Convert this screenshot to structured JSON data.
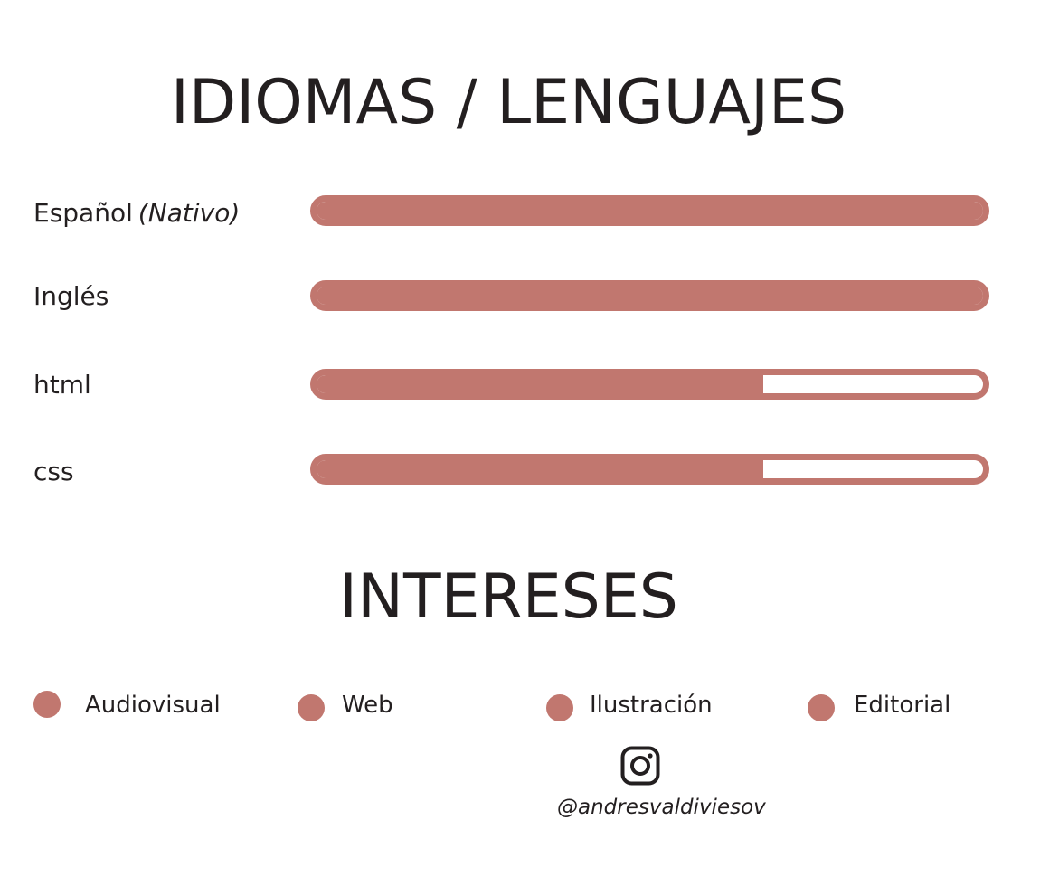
{
  "titles": {
    "languages": "IDIOMAS / LENGUAJES",
    "interests": "INTERESES"
  },
  "colors": {
    "accent": "#c1776f",
    "text": "#231f20",
    "background": "#ffffff"
  },
  "languages": [
    {
      "name": "Español",
      "note": "(Nativo)",
      "level": 1.0
    },
    {
      "name": "Inglés",
      "note": "",
      "level": 1.0
    },
    {
      "name": "html",
      "note": "",
      "level": 0.67
    },
    {
      "name": "css",
      "note": "",
      "level": 0.67
    }
  ],
  "interests": [
    {
      "label": "Audiovisual",
      "icon": "dot-icon"
    },
    {
      "label": "Web",
      "icon": "dot-icon"
    },
    {
      "label": "Ilustración",
      "icon": "dot-icon"
    },
    {
      "label": "Editorial",
      "icon": "dot-icon"
    }
  ],
  "social": {
    "icon": "instagram-icon",
    "handle": "@andresvaldiviesov"
  }
}
